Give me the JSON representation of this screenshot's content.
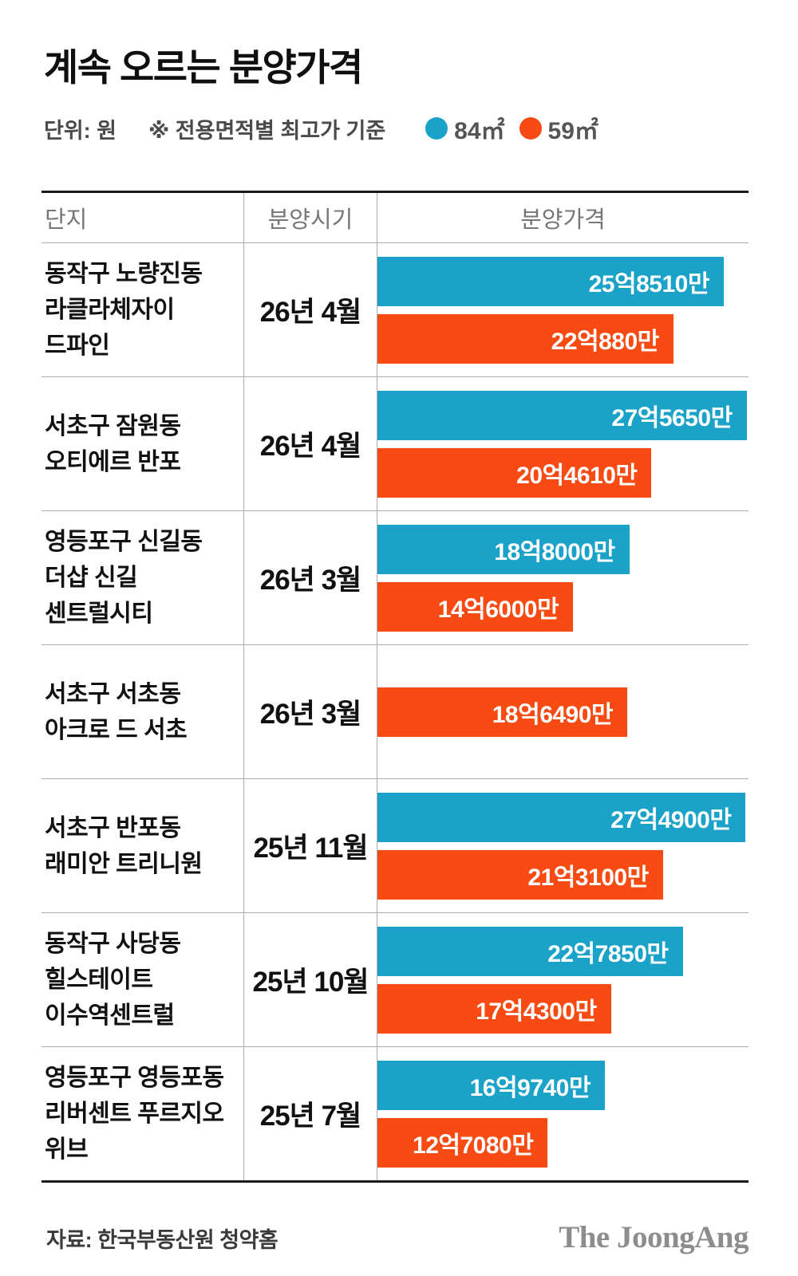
{
  "title": "계속 오르는 분양가격",
  "subtitle": {
    "unit_label": "단위: 원",
    "note": "※ 전용면적별 최고가 기준"
  },
  "legend": [
    {
      "label": "84㎡",
      "color": "#1BA2C9"
    },
    {
      "label": "59㎡",
      "color": "#F84B13"
    }
  ],
  "table": {
    "columns": [
      "단지",
      "분양시기",
      "분양가격"
    ]
  },
  "chart_data": {
    "type": "bar",
    "orientation": "horizontal",
    "unit": "억원",
    "value_axis_max": 27.7,
    "series_names": [
      "84㎡",
      "59㎡"
    ],
    "colors": {
      "84㎡": "#1BA2C9",
      "59㎡": "#F84B13"
    },
    "rows": [
      {
        "complex_lines": [
          "동작구 노량진동",
          "라클라체자이",
          "드파인"
        ],
        "period": "26년 4월",
        "bars": [
          {
            "series": "84㎡",
            "value": 25.851,
            "label": "25억8510만"
          },
          {
            "series": "59㎡",
            "value": 22.088,
            "label": "22억880만"
          }
        ]
      },
      {
        "complex_lines": [
          "서초구 잠원동",
          "오티에르 반포"
        ],
        "period": "26년 4월",
        "bars": [
          {
            "series": "84㎡",
            "value": 27.565,
            "label": "27억5650만"
          },
          {
            "series": "59㎡",
            "value": 20.461,
            "label": "20억4610만"
          }
        ]
      },
      {
        "complex_lines": [
          "영등포구 신길동",
          "더샵 신길",
          "센트럴시티"
        ],
        "period": "26년 3월",
        "bars": [
          {
            "series": "84㎡",
            "value": 18.8,
            "label": "18억8000만"
          },
          {
            "series": "59㎡",
            "value": 14.6,
            "label": "14억6000만"
          }
        ]
      },
      {
        "complex_lines": [
          "서초구 서초동",
          "아크로 드 서초"
        ],
        "period": "26년 3월",
        "bars": [
          {
            "series": "59㎡",
            "value": 18.649,
            "label": "18억6490만"
          }
        ]
      },
      {
        "complex_lines": [
          "서초구 반포동",
          "래미안 트리니원"
        ],
        "period": "25년 11월",
        "bars": [
          {
            "series": "84㎡",
            "value": 27.49,
            "label": "27억4900만"
          },
          {
            "series": "59㎡",
            "value": 21.31,
            "label": "21억3100만"
          }
        ]
      },
      {
        "complex_lines": [
          "동작구 사당동",
          "힐스테이트",
          "이수역센트럴"
        ],
        "period": "25년 10월",
        "bars": [
          {
            "series": "84㎡",
            "value": 22.785,
            "label": "22억7850만"
          },
          {
            "series": "59㎡",
            "value": 17.43,
            "label": "17억4300만"
          }
        ]
      },
      {
        "complex_lines": [
          "영등포구 영등포동",
          "리버센트 푸르지오",
          "위브"
        ],
        "period": "25년 7월",
        "bars": [
          {
            "series": "84㎡",
            "value": 16.974,
            "label": "16억9740만"
          },
          {
            "series": "59㎡",
            "value": 12.708,
            "label": "12억7080만"
          }
        ]
      }
    ]
  },
  "footer": {
    "source": "자료: 한국부동산원 청약홈",
    "logo": "The JoongAng"
  }
}
